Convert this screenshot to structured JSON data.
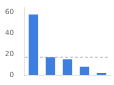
{
  "chart_data": {
    "type": "bar",
    "categories": [
      null,
      null,
      null,
      null,
      null
    ],
    "values": [
      58,
      17,
      15,
      8,
      2
    ],
    "color": "#3d7edf",
    "ylim": [
      0,
      65
    ],
    "yticks": [
      0,
      20,
      40,
      60
    ],
    "grid": false,
    "tick_labels": "y",
    "reference_line": {
      "value": 17,
      "color": "#bbbbbb",
      "line_style": "dashed"
    }
  }
}
